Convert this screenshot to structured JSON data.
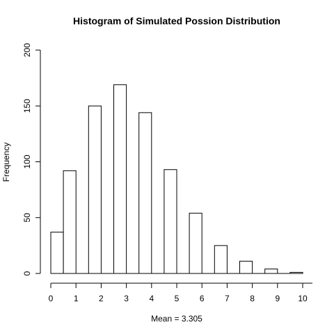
{
  "chart_data": {
    "type": "bar",
    "title": "Histogram of Simulated Possion Distribution",
    "xlabel": "Mean = 3.305",
    "ylabel": "Frequency",
    "x_ticks": [
      "0",
      "1",
      "2",
      "3",
      "4",
      "5",
      "6",
      "7",
      "8",
      "9",
      "10"
    ],
    "y_ticks": [
      "0",
      "50",
      "100",
      "150",
      "200"
    ],
    "xlim": [
      0,
      10
    ],
    "ylim": [
      0,
      200
    ],
    "bins": [
      {
        "left": 0.0,
        "right": 0.5,
        "value": 37
      },
      {
        "left": 0.5,
        "right": 1.0,
        "value": 92
      },
      {
        "left": 1.5,
        "right": 2.0,
        "value": 150
      },
      {
        "left": 2.5,
        "right": 3.0,
        "value": 169
      },
      {
        "left": 3.5,
        "right": 4.0,
        "value": 144
      },
      {
        "left": 4.5,
        "right": 5.0,
        "value": 93
      },
      {
        "left": 5.5,
        "right": 6.0,
        "value": 54
      },
      {
        "left": 6.5,
        "right": 7.0,
        "value": 25
      },
      {
        "left": 7.5,
        "right": 8.0,
        "value": 11
      },
      {
        "left": 8.5,
        "right": 9.0,
        "value": 4
      },
      {
        "left": 9.5,
        "right": 10.0,
        "value": 1
      }
    ],
    "legend": "none",
    "grid": false,
    "colors": {
      "bar_fill": "#ffffff",
      "bar_stroke": "#000000"
    }
  }
}
